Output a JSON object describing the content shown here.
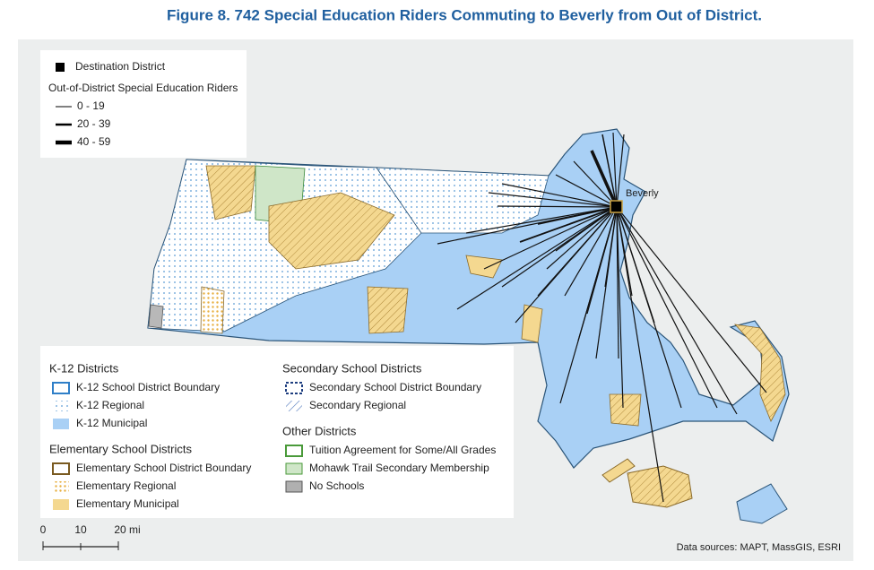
{
  "title": "Figure 8. 742 Special Education Riders Commuting to Beverly from Out of District.",
  "map": {
    "destination_label": "Beverly"
  },
  "legend_top": {
    "destination": "Destination District",
    "riders_title": "Out-of-District Special Education Riders",
    "classes": [
      "0 - 19",
      "20 - 39",
      "40 - 59"
    ]
  },
  "legend": {
    "groups": [
      {
        "title": "K-12 Districts",
        "items": [
          "K-12 School District Boundary",
          "K-12 Regional",
          "K-12 Municipal"
        ]
      },
      {
        "title": "Elementary School Districts",
        "items": [
          "Elementary School District Boundary",
          "Elementary Regional",
          "Elementary Municipal"
        ]
      },
      {
        "title": "Secondary School Districts",
        "items": [
          "Secondary School District Boundary",
          "Secondary Regional"
        ]
      },
      {
        "title": "Other Districts",
        "items": [
          "Tuition Agreement for Some/All Grades",
          "Mohawk Trail Secondary Membership",
          "No Schools"
        ]
      }
    ]
  },
  "scale_bar": {
    "labels": [
      "0",
      "10",
      "20 mi"
    ]
  },
  "source": "Data sources: MAPT, MassGIS, ESRI"
}
